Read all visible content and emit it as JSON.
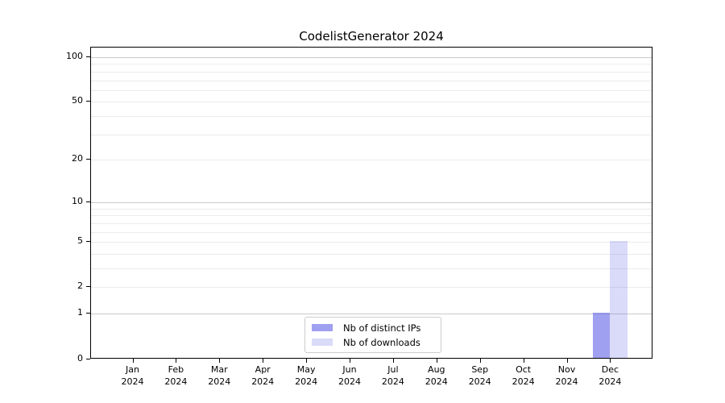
{
  "chart_data": {
    "type": "bar",
    "title": "CodelistGenerator 2024",
    "categories": [
      "Jan",
      "Feb",
      "Mar",
      "Apr",
      "May",
      "Jun",
      "Jul",
      "Aug",
      "Sep",
      "Oct",
      "Nov",
      "Dec"
    ],
    "category_year": "2024",
    "series": [
      {
        "name": "Nb of distinct IPs",
        "color": "#a3a3ec",
        "color_rgba": "rgba(102,102,230,0.62)",
        "values": [
          0,
          0,
          0,
          0,
          0,
          0,
          0,
          0,
          0,
          0,
          0,
          1
        ]
      },
      {
        "name": "Nb of downloads",
        "color": "#dadaf9",
        "color_rgba": "rgba(102,102,230,0.24)",
        "values": [
          0,
          0,
          0,
          0,
          0,
          0,
          0,
          0,
          0,
          0,
          0,
          5
        ]
      }
    ],
    "xlabel": "",
    "ylabel": "",
    "yscale": "log1p",
    "ylim": [
      0,
      116
    ],
    "yticks": [
      0,
      1,
      2,
      5,
      10,
      20,
      50,
      100
    ],
    "minor_gridlines": [
      2,
      3,
      4,
      5,
      6,
      7,
      8,
      9,
      20,
      30,
      40,
      50,
      60,
      70,
      80,
      90
    ],
    "major_gridlines": [
      1,
      10,
      100
    ],
    "grid": "horizontal",
    "legend_position": "bottom-center",
    "colors": {
      "spine": "#000000",
      "major_grid": "#c9c9c9",
      "minor_grid": "#ebebeb",
      "legend_border": "#cccccc"
    }
  }
}
